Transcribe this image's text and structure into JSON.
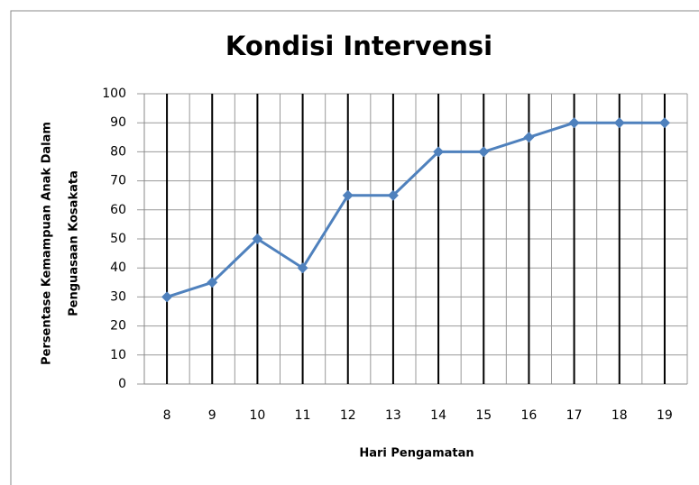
{
  "chart_data": {
    "type": "line",
    "title": "Kondisi Intervensi",
    "xlabel": "Hari Pengamatan",
    "ylabel": [
      "Persentase Kemampuan Anak Dalam",
      "Penguasaan Kosakata"
    ],
    "categories": [
      "8",
      "9",
      "10",
      "11",
      "12",
      "13",
      "14",
      "15",
      "16",
      "17",
      "18",
      "19"
    ],
    "values": [
      30,
      35,
      50,
      40,
      65,
      65,
      80,
      80,
      85,
      90,
      90,
      90
    ],
    "color": "#4f81bd",
    "ylim": [
      0,
      100
    ],
    "yticks": [
      0,
      10,
      20,
      30,
      40,
      50,
      60,
      70,
      80,
      90,
      100
    ],
    "grid": true
  }
}
